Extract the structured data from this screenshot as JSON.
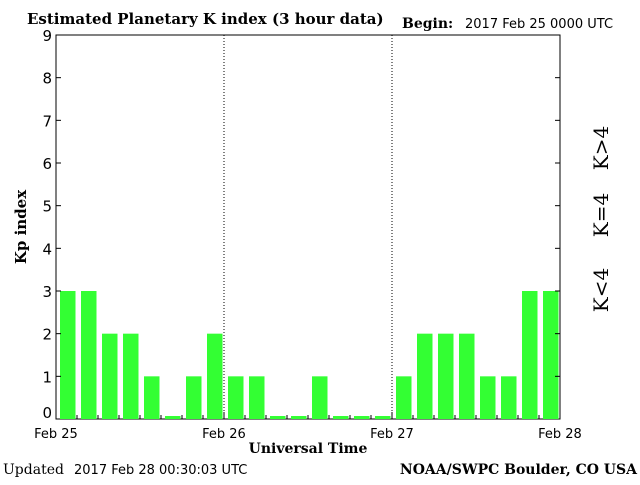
{
  "chart_data": {
    "type": "bar",
    "title": "Estimated Planetary K index (3 hour data)",
    "begin_label": "Begin:",
    "begin_value": "2017 Feb 25 0000 UTC",
    "xlabel": "Universal Time",
    "ylabel": "Kp index",
    "ylim": [
      0,
      9
    ],
    "yticks": [
      "0",
      "1",
      "2",
      "3",
      "4",
      "5",
      "6",
      "7",
      "8",
      "9"
    ],
    "xtick_labels": [
      "Feb 25",
      "Feb 26",
      "Feb 27",
      "Feb 28"
    ],
    "values": [
      3,
      3,
      2,
      2,
      1,
      0,
      1,
      2,
      1,
      1,
      0,
      0,
      1,
      0,
      0,
      0,
      1,
      2,
      2,
      2,
      1,
      1,
      3,
      3
    ],
    "legend": [
      {
        "label": "K<4",
        "color": "#33ee33"
      },
      {
        "label": "K=4",
        "color": "#ffcc00"
      },
      {
        "label": "K>4",
        "color": "#ee2222"
      }
    ],
    "bar_color": "#33ff33",
    "grid": "dotted vertical at day boundaries"
  },
  "footer": {
    "updated_label": "Updated",
    "updated_value": "2017 Feb 28 00:30:03 UTC",
    "credit": "NOAA/SWPC Boulder, CO USA"
  }
}
